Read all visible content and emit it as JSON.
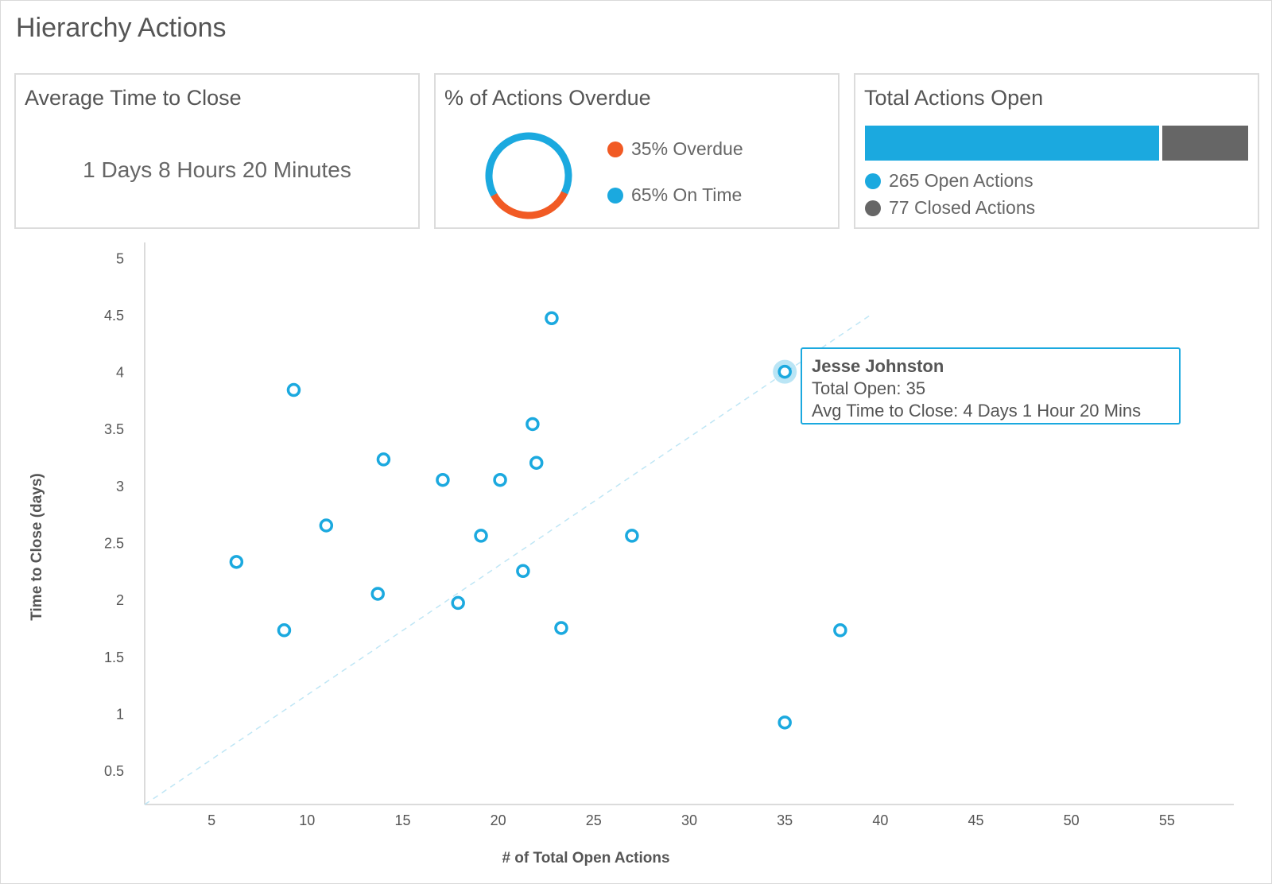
{
  "page_title": "Hierarchy Actions",
  "cards": {
    "avg": {
      "title": "Average Time to Close",
      "value": "1 Days 8 Hours 20 Minutes"
    },
    "overdue": {
      "title": "% of Actions Overdue",
      "overdue_pct": 35,
      "on_time_pct": 65,
      "legend_overdue": "35% Overdue",
      "legend_on_time": "65% On Time"
    },
    "total": {
      "title": "Total Actions Open",
      "open_count": 265,
      "closed_count": 77,
      "legend_open": "265 Open Actions",
      "legend_closed": "77 Closed Actions"
    }
  },
  "colors": {
    "blue": "#1ba9df",
    "orange": "#f15a24",
    "gray": "#666666"
  },
  "tooltip": {
    "name": "Jesse Johnston",
    "total_open": "Total Open: 35",
    "avg_time": "Avg Time to Close: 4 Days 1 Hour 20 Mins"
  },
  "chart_data": {
    "type": "scatter",
    "xlabel": "# of Total Open Actions",
    "ylabel": "Time to Close (days)",
    "xlim": [
      1.5,
      58.5
    ],
    "ylim": [
      0.2,
      5.1
    ],
    "x_ticks": [
      5,
      10,
      15,
      20,
      25,
      30,
      35,
      40,
      45,
      50,
      55
    ],
    "y_ticks": [
      0.5,
      1,
      1.5,
      2,
      2.5,
      3,
      3.5,
      4,
      4.5,
      5
    ],
    "trendline": {
      "from": [
        1.5,
        0.2
      ],
      "to": [
        39.5,
        4.5
      ]
    },
    "highlighted_index": 7,
    "points": [
      {
        "x": 6.3,
        "y": 2.33
      },
      {
        "x": 8.8,
        "y": 1.73
      },
      {
        "x": 9.3,
        "y": 3.84
      },
      {
        "x": 11.0,
        "y": 2.65
      },
      {
        "x": 13.7,
        "y": 2.05
      },
      {
        "x": 14.0,
        "y": 3.23
      },
      {
        "x": 17.1,
        "y": 3.05
      },
      {
        "x": 35.0,
        "y": 4.0
      },
      {
        "x": 17.9,
        "y": 1.97
      },
      {
        "x": 19.1,
        "y": 2.56
      },
      {
        "x": 20.1,
        "y": 3.05
      },
      {
        "x": 21.3,
        "y": 2.25
      },
      {
        "x": 21.8,
        "y": 3.54
      },
      {
        "x": 22.0,
        "y": 3.2
      },
      {
        "x": 22.8,
        "y": 4.47
      },
      {
        "x": 23.3,
        "y": 1.75
      },
      {
        "x": 27.0,
        "y": 2.56
      },
      {
        "x": 35.0,
        "y": 0.92
      },
      {
        "x": 37.9,
        "y": 1.73
      }
    ]
  }
}
